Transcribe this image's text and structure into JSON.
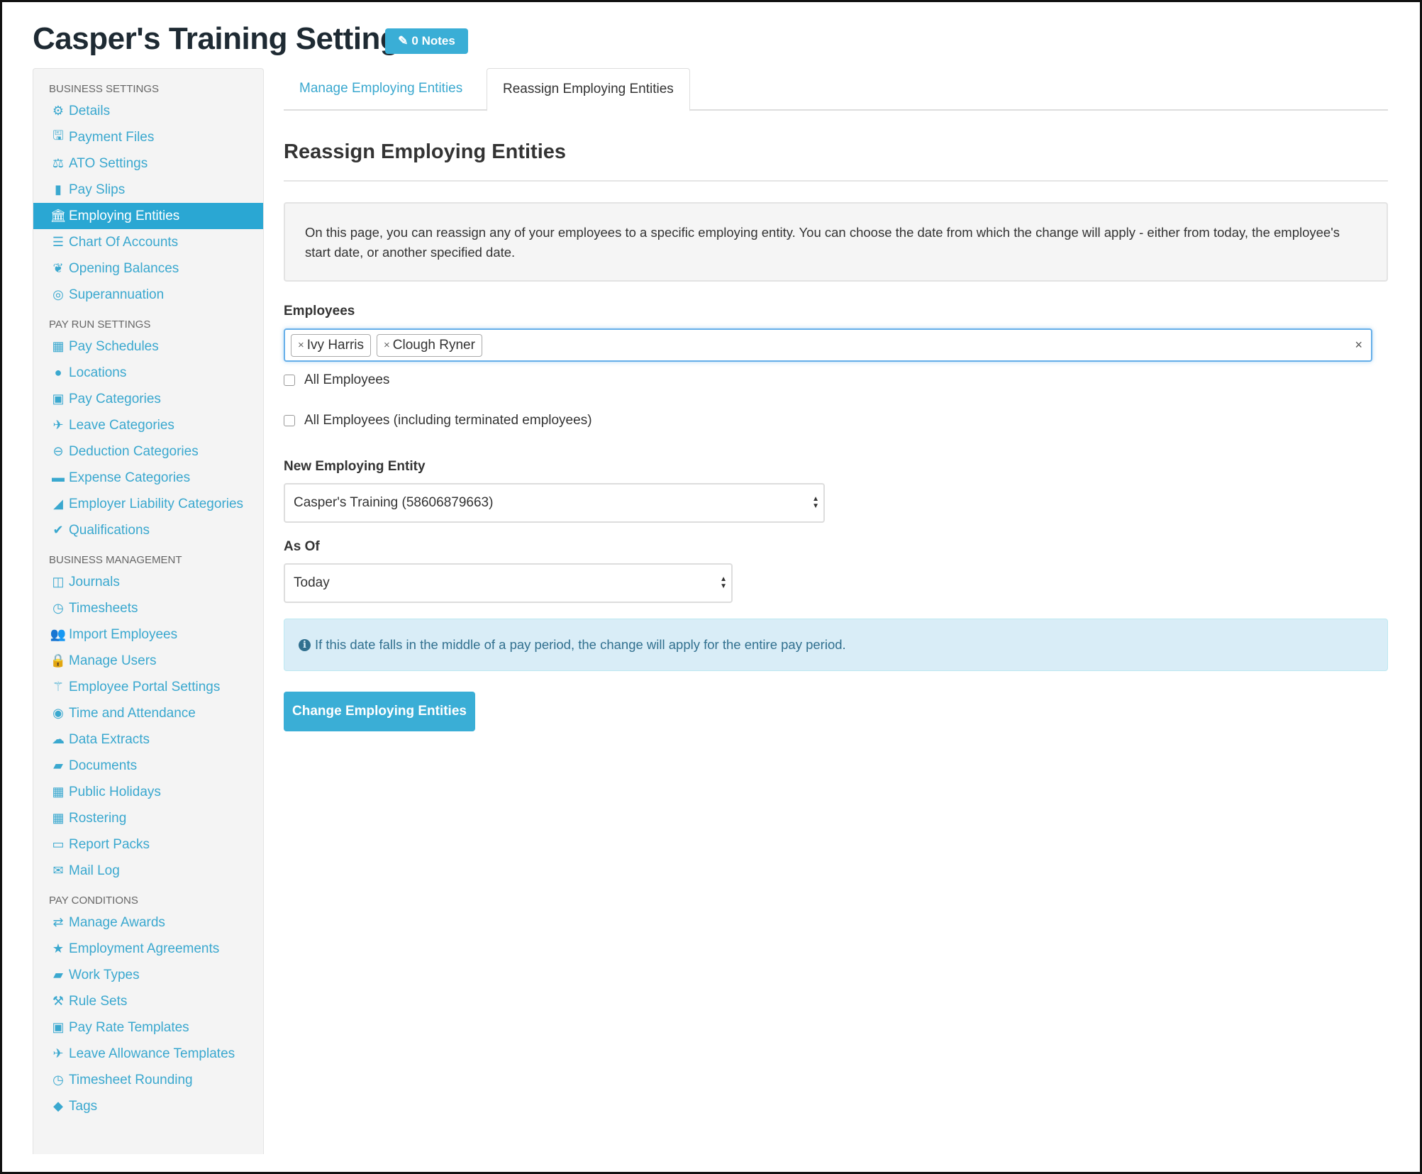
{
  "header": {
    "title": "Casper's Training Settings",
    "notes_label": "0 Notes"
  },
  "sidebar": {
    "sections": [
      {
        "title": "BUSINESS SETTINGS",
        "items": [
          {
            "label": "Details",
            "icon": "gear-icon",
            "glyph": "⚙"
          },
          {
            "label": "Payment Files",
            "icon": "floppy-disk-icon",
            "glyph": "🖫"
          },
          {
            "label": "ATO Settings",
            "icon": "scale-icon",
            "glyph": "⚖"
          },
          {
            "label": "Pay Slips",
            "icon": "file-icon",
            "glyph": "▮"
          },
          {
            "label": "Employing Entities",
            "icon": "bank-icon",
            "glyph": "🏛",
            "active": true
          },
          {
            "label": "Chart Of Accounts",
            "icon": "list-icon",
            "glyph": "☰"
          },
          {
            "label": "Opening Balances",
            "icon": "leaf-icon",
            "glyph": "❦"
          },
          {
            "label": "Superannuation",
            "icon": "life-ring-icon",
            "glyph": "◎"
          }
        ]
      },
      {
        "title": "PAY RUN SETTINGS",
        "items": [
          {
            "label": "Pay Schedules",
            "icon": "calendar-icon",
            "glyph": "▦"
          },
          {
            "label": "Locations",
            "icon": "globe-icon",
            "glyph": "●"
          },
          {
            "label": "Pay Categories",
            "icon": "money-icon",
            "glyph": "▣"
          },
          {
            "label": "Leave Categories",
            "icon": "plane-icon",
            "glyph": "✈"
          },
          {
            "label": "Deduction Categories",
            "icon": "minus-circle-icon",
            "glyph": "⊖"
          },
          {
            "label": "Expense Categories",
            "icon": "archive-icon",
            "glyph": "▬"
          },
          {
            "label": "Employer Liability Categories",
            "icon": "area-chart-icon",
            "glyph": "◢"
          },
          {
            "label": "Qualifications",
            "icon": "check-icon",
            "glyph": "✔"
          }
        ]
      },
      {
        "title": "BUSINESS MANAGEMENT",
        "items": [
          {
            "label": "Journals",
            "icon": "columns-icon",
            "glyph": "◫"
          },
          {
            "label": "Timesheets",
            "icon": "clock-icon",
            "glyph": "◷"
          },
          {
            "label": "Import Employees",
            "icon": "users-icon",
            "glyph": "👥"
          },
          {
            "label": "Manage Users",
            "icon": "lock-icon",
            "glyph": "🔒"
          },
          {
            "label": "Employee Portal Settings",
            "icon": "magic-wand-icon",
            "glyph": "⚚"
          },
          {
            "label": "Time and Attendance",
            "icon": "user-circle-icon",
            "glyph": "◉"
          },
          {
            "label": "Data Extracts",
            "icon": "cloud-download-icon",
            "glyph": "☁"
          },
          {
            "label": "Documents",
            "icon": "folder-icon",
            "glyph": "▰"
          },
          {
            "label": "Public Holidays",
            "icon": "calendar-icon",
            "glyph": "▦"
          },
          {
            "label": "Rostering",
            "icon": "calendar-icon",
            "glyph": "▦"
          },
          {
            "label": "Report Packs",
            "icon": "folder-open-icon",
            "glyph": "▭"
          },
          {
            "label": "Mail Log",
            "icon": "envelope-icon",
            "glyph": "✉"
          }
        ]
      },
      {
        "title": "PAY CONDITIONS",
        "items": [
          {
            "label": "Manage Awards",
            "icon": "exchange-icon",
            "glyph": "⇄"
          },
          {
            "label": "Employment Agreements",
            "icon": "star-icon",
            "glyph": "★"
          },
          {
            "label": "Work Types",
            "icon": "book-icon",
            "glyph": "▰"
          },
          {
            "label": "Rule Sets",
            "icon": "gavel-icon",
            "glyph": "⚒"
          },
          {
            "label": "Pay Rate Templates",
            "icon": "money-icon",
            "glyph": "▣"
          },
          {
            "label": "Leave Allowance Templates",
            "icon": "plane-icon",
            "glyph": "✈"
          },
          {
            "label": "Timesheet Rounding",
            "icon": "clock-icon",
            "glyph": "◷"
          },
          {
            "label": "Tags",
            "icon": "tag-icon",
            "glyph": "◆"
          }
        ]
      }
    ]
  },
  "tabs": [
    {
      "label": "Manage Employing Entities"
    },
    {
      "label": "Reassign Employing Entities",
      "active": true
    }
  ],
  "main": {
    "heading": "Reassign Employing Entities",
    "intro": "On this page, you can reassign any of your employees to a specific employing entity. You can choose the date from which the change will apply - either from today, the employee's start date, or another specified date.",
    "employees_label": "Employees",
    "selected_employees": [
      "Ivy Harris",
      "Clough Ryner"
    ],
    "chip_remove": "×",
    "clear_all": "×",
    "all_employees": {
      "label": "All Employees",
      "checked": false
    },
    "all_including_terminated": {
      "label": "All Employees (including terminated employees)",
      "checked": false
    },
    "new_entity_label": "New Employing Entity",
    "new_entity_value": "Casper's Training (58606879663)",
    "as_of_label": "As Of",
    "as_of_value": "Today",
    "alert_text": "If this date falls in the middle of a pay period, the change will apply for the entire pay period.",
    "submit_label": "Change Employing Entities"
  },
  "colors": {
    "accent": "#3aaed6",
    "active_bg": "#2aa7d3",
    "link": "#3aa8cf",
    "alert_bg": "#d9edf7",
    "alert_text": "#31708f"
  }
}
